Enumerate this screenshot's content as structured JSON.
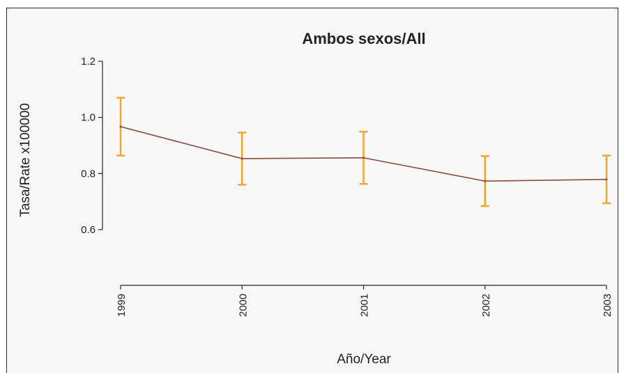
{
  "chart_data": {
    "type": "line",
    "title": "Ambos sexos/All",
    "xlabel": "Año/Year",
    "ylabel": "Tasa/Rate x100000",
    "categories": [
      "1999",
      "2000",
      "2001",
      "2002",
      "2003"
    ],
    "series": [
      {
        "values": [
          0.967,
          0.853,
          0.856,
          0.773,
          0.779
        ],
        "lower": [
          0.864,
          0.76,
          0.763,
          0.684,
          0.694
        ],
        "upper": [
          1.07,
          0.946,
          0.949,
          0.862,
          0.864
        ]
      }
    ],
    "yticks": [
      0.6,
      0.8,
      1.0,
      1.2
    ],
    "ytick_labels": [
      "0.6",
      "0.8",
      "1.0",
      "1.2"
    ],
    "ylim": [
      0.6,
      1.2
    ],
    "grid": false,
    "colors": {
      "line": "#8b4a3c",
      "error_bars": "#f0a533",
      "background": "#f8f8f8",
      "axis": "#222222"
    }
  }
}
